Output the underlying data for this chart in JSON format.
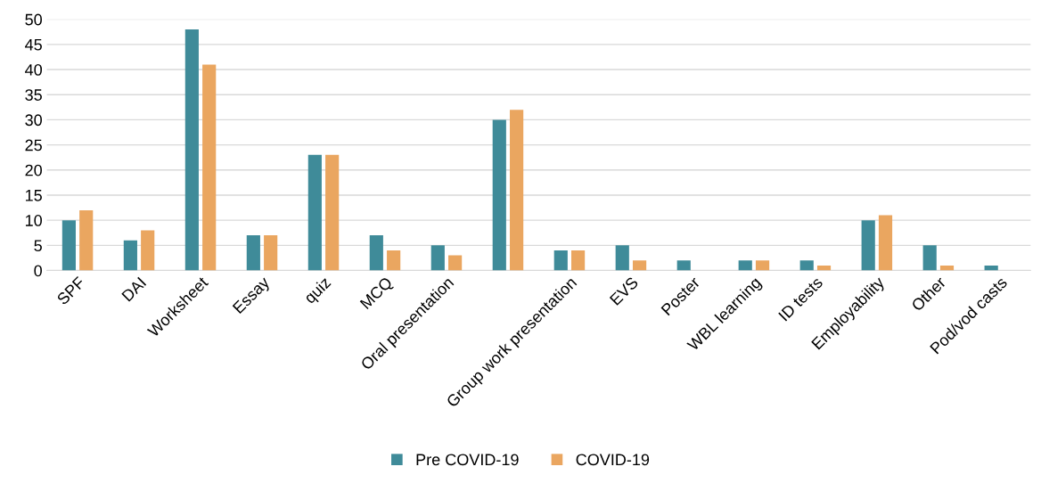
{
  "chart_data": {
    "type": "bar",
    "categories": [
      "SPF",
      "DAI",
      "Worksheet",
      "Essay",
      "quiz",
      "MCQ",
      "Oral presentation",
      null,
      "Group work presentation",
      "EVS",
      "Poster",
      "WBL learning",
      "ID tests",
      "Employability",
      "Other",
      "Pod/vod casts"
    ],
    "series": [
      {
        "name": "Pre COVID-19",
        "color": "#3f8b99",
        "values": [
          10,
          6,
          48,
          7,
          23,
          7,
          5,
          30,
          4,
          5,
          2,
          2,
          2,
          10,
          5,
          1
        ]
      },
      {
        "name": "COVID-19",
        "color": "#eaa660",
        "values": [
          12,
          8,
          41,
          7,
          23,
          4,
          3,
          32,
          4,
          2,
          null,
          2,
          1,
          11,
          1,
          null
        ]
      }
    ],
    "ylim": [
      0,
      50
    ],
    "yticks": [
      0,
      5,
      10,
      15,
      20,
      25,
      30,
      35,
      40,
      45,
      50
    ],
    "grid": "y",
    "legend": "bottom"
  }
}
